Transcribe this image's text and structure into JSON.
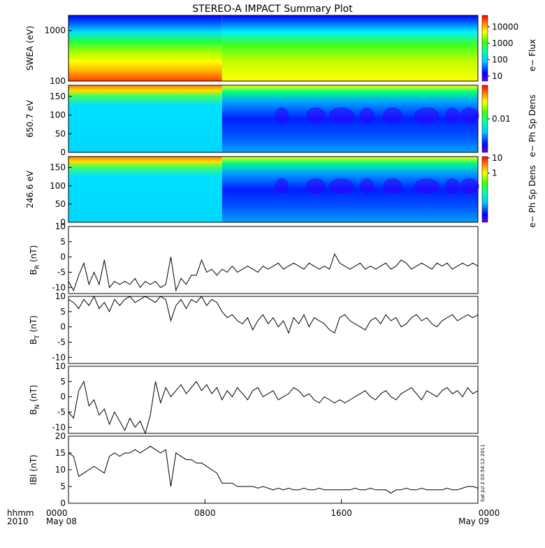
{
  "chart_data": {
    "type": "line",
    "title": "STEREO-A IMPACT Summary Plot",
    "time_labels": [
      "0000",
      "0800",
      "1600",
      "0000"
    ],
    "date_labels": [
      "May 08",
      "May 09"
    ],
    "time_header": "hhmm",
    "year_label": "2010",
    "x_range_hours": [
      0,
      24
    ],
    "stamp": "Sat Jul  2 03:54:12 2011",
    "spectrograms": [
      {
        "ylabel": "SWEA (eV)",
        "yscale": "log",
        "ylim": [
          100,
          2000
        ],
        "yticks": [
          "100",
          "1000"
        ],
        "colorbar_label": "e− Flux",
        "colorbar_ticks": [
          "10",
          "100",
          "1000",
          "10000"
        ]
      },
      {
        "ylabel": "650.7 eV",
        "ylim": [
          0,
          180
        ],
        "yticks": [
          "0",
          "50",
          "100",
          "150"
        ],
        "colorbar_label": "e− Ph Sp Dens",
        "colorbar_ticks": [
          "0.01"
        ]
      },
      {
        "ylabel": "246.6 eV",
        "ylim": [
          0,
          180
        ],
        "yticks": [
          "0",
          "50",
          "100",
          "150"
        ],
        "colorbar_label": "e− Ph Sp Dens",
        "colorbar_ticks": [
          "1",
          "10"
        ]
      }
    ],
    "series": [
      {
        "name": "B_R",
        "ylabel": "B",
        "ysub": "R",
        "yunit": "(nT)",
        "ylim": [
          -12,
          10
        ],
        "yticks": [
          "-10",
          "-5",
          "0",
          "5",
          "10"
        ],
        "x": [
          0,
          0.3,
          0.6,
          0.9,
          1.2,
          1.5,
          1.8,
          2.1,
          2.4,
          2.7,
          3.0,
          3.3,
          3.6,
          3.9,
          4.2,
          4.5,
          4.8,
          5.1,
          5.4,
          5.7,
          6.0,
          6.3,
          6.6,
          6.9,
          7.2,
          7.5,
          7.8,
          8.1,
          8.4,
          8.7,
          9.0,
          9.3,
          9.6,
          9.9,
          10.2,
          10.5,
          10.8,
          11.1,
          11.4,
          11.7,
          12.0,
          12.3,
          12.6,
          12.9,
          13.2,
          13.5,
          13.8,
          14.1,
          14.4,
          14.7,
          15.0,
          15.3,
          15.6,
          15.9,
          16.2,
          16.5,
          16.8,
          17.1,
          17.4,
          17.7,
          18.0,
          18.3,
          18.6,
          18.9,
          19.2,
          19.5,
          19.8,
          20.1,
          20.4,
          20.7,
          21.0,
          21.3,
          21.6,
          21.9,
          22.2,
          22.5,
          22.8,
          23.1,
          23.4,
          23.7,
          24.0
        ],
        "values": [
          -8,
          -11,
          -6,
          -2,
          -9,
          -5,
          -9,
          -1,
          -10,
          -8,
          -9,
          -8,
          -9,
          -7,
          -10,
          -8,
          -9,
          -8,
          -10,
          -9,
          0,
          -11,
          -7,
          -9,
          -6,
          -6,
          -1,
          -5,
          -4,
          -6,
          -4,
          -5,
          -3,
          -5,
          -4,
          -3,
          -4,
          -5,
          -3,
          -4,
          -3,
          -2,
          -4,
          -3,
          -2,
          -3,
          -4,
          -2,
          -3,
          -4,
          -3,
          -4,
          1,
          -2,
          -3,
          -4,
          -3,
          -2,
          -4,
          -3,
          -4,
          -3,
          -2,
          -4,
          -3,
          -1,
          -2,
          -4,
          -3,
          -2,
          -3,
          -4,
          -2,
          -3,
          -2,
          -4,
          -3,
          -2,
          -3,
          -2,
          -3
        ]
      },
      {
        "name": "B_T",
        "ylabel": "B",
        "ysub": "T",
        "yunit": "(nT)",
        "ylim": [
          -12,
          10
        ],
        "yticks": [
          "-10",
          "-5",
          "0",
          "5",
          "10"
        ],
        "x": [
          0,
          0.3,
          0.6,
          0.9,
          1.2,
          1.5,
          1.8,
          2.1,
          2.4,
          2.7,
          3.0,
          3.3,
          3.6,
          3.9,
          4.2,
          4.5,
          4.8,
          5.1,
          5.4,
          5.7,
          6.0,
          6.3,
          6.6,
          6.9,
          7.2,
          7.5,
          7.8,
          8.1,
          8.4,
          8.7,
          9.0,
          9.3,
          9.6,
          9.9,
          10.2,
          10.5,
          10.8,
          11.1,
          11.4,
          11.7,
          12.0,
          12.3,
          12.6,
          12.9,
          13.2,
          13.5,
          13.8,
          14.1,
          14.4,
          14.7,
          15.0,
          15.3,
          15.6,
          15.9,
          16.2,
          16.5,
          16.8,
          17.1,
          17.4,
          17.7,
          18.0,
          18.3,
          18.6,
          18.9,
          19.2,
          19.5,
          19.8,
          20.1,
          20.4,
          20.7,
          21.0,
          21.3,
          21.6,
          21.9,
          22.2,
          22.5,
          22.8,
          23.1,
          23.4,
          23.7,
          24.0
        ],
        "values": [
          9,
          8,
          6,
          9,
          7,
          10,
          6,
          8,
          5,
          9,
          7,
          9,
          10,
          8,
          9,
          10,
          9,
          8,
          10,
          9,
          2,
          7,
          9,
          6,
          9,
          8,
          10,
          7,
          9,
          8,
          5,
          3,
          4,
          2,
          1,
          3,
          -1,
          2,
          4,
          1,
          3,
          0,
          2,
          -2,
          3,
          1,
          4,
          0,
          3,
          2,
          1,
          -1,
          -2,
          3,
          4,
          2,
          1,
          0,
          -1,
          2,
          3,
          1,
          4,
          2,
          3,
          0,
          1,
          3,
          4,
          2,
          3,
          1,
          0,
          2,
          3,
          4,
          2,
          3,
          4,
          3,
          4
        ]
      },
      {
        "name": "B_N",
        "ylabel": "B",
        "ysub": "N",
        "yunit": "(nT)",
        "ylim": [
          -12,
          10
        ],
        "yticks": [
          "-10",
          "-5",
          "0",
          "5",
          "10"
        ],
        "x": [
          0,
          0.3,
          0.6,
          0.9,
          1.2,
          1.5,
          1.8,
          2.1,
          2.4,
          2.7,
          3.0,
          3.3,
          3.6,
          3.9,
          4.2,
          4.5,
          4.8,
          5.1,
          5.4,
          5.7,
          6.0,
          6.3,
          6.6,
          6.9,
          7.2,
          7.5,
          7.8,
          8.1,
          8.4,
          8.7,
          9.0,
          9.3,
          9.6,
          9.9,
          10.2,
          10.5,
          10.8,
          11.1,
          11.4,
          11.7,
          12.0,
          12.3,
          12.6,
          12.9,
          13.2,
          13.5,
          13.8,
          14.1,
          14.4,
          14.7,
          15.0,
          15.3,
          15.6,
          15.9,
          16.2,
          16.5,
          16.8,
          17.1,
          17.4,
          17.7,
          18.0,
          18.3,
          18.6,
          18.9,
          19.2,
          19.5,
          19.8,
          20.1,
          20.4,
          20.7,
          21.0,
          21.3,
          21.6,
          21.9,
          22.2,
          22.5,
          22.8,
          23.1,
          23.4,
          23.7,
          24.0
        ],
        "values": [
          -5,
          -7,
          2,
          5,
          -3,
          -1,
          -6,
          -4,
          -9,
          -5,
          -8,
          -11,
          -7,
          -10,
          -8,
          -12,
          -6,
          5,
          -2,
          3,
          0,
          2,
          4,
          1,
          3,
          5,
          2,
          4,
          1,
          3,
          -1,
          2,
          0,
          3,
          1,
          -1,
          2,
          3,
          0,
          1,
          2,
          -1,
          0,
          1,
          3,
          2,
          0,
          1,
          -1,
          -2,
          0,
          -1,
          -2,
          -1,
          -2,
          -1,
          0,
          1,
          2,
          0,
          -1,
          1,
          2,
          0,
          -1,
          1,
          2,
          3,
          1,
          -1,
          2,
          1,
          0,
          2,
          3,
          1,
          2,
          0,
          3,
          1,
          2
        ]
      },
      {
        "name": "|B|",
        "ylabel": "IBI",
        "ysub": "",
        "yunit": "(nT)",
        "ylim": [
          0,
          20
        ],
        "yticks": [
          "0",
          "5",
          "10",
          "15",
          "20"
        ],
        "x": [
          0,
          0.3,
          0.6,
          0.9,
          1.2,
          1.5,
          1.8,
          2.1,
          2.4,
          2.7,
          3.0,
          3.3,
          3.6,
          3.9,
          4.2,
          4.5,
          4.8,
          5.1,
          5.4,
          5.7,
          6.0,
          6.3,
          6.6,
          6.9,
          7.2,
          7.5,
          7.8,
          8.1,
          8.4,
          8.7,
          9.0,
          9.3,
          9.6,
          9.9,
          10.2,
          10.5,
          10.8,
          11.1,
          11.4,
          11.7,
          12.0,
          12.3,
          12.6,
          12.9,
          13.2,
          13.5,
          13.8,
          14.1,
          14.4,
          14.7,
          15.0,
          15.3,
          15.6,
          15.9,
          16.2,
          16.5,
          16.8,
          17.1,
          17.4,
          17.7,
          18.0,
          18.3,
          18.6,
          18.9,
          19.2,
          19.5,
          19.8,
          20.1,
          20.4,
          20.7,
          21.0,
          21.3,
          21.6,
          21.9,
          22.2,
          22.5,
          22.8,
          23.1,
          23.4,
          23.7,
          24.0
        ],
        "values": [
          15,
          14,
          8,
          9,
          10,
          11,
          10,
          9,
          14,
          15,
          14,
          15,
          15,
          16,
          15,
          16,
          17,
          16,
          15,
          16,
          5,
          15,
          14,
          13,
          13,
          12,
          12,
          11,
          10,
          9,
          6,
          6,
          6,
          5,
          5,
          5,
          5,
          4.5,
          5,
          4.5,
          4,
          4.5,
          4,
          4.5,
          4,
          4,
          4.5,
          4,
          4,
          4.5,
          4,
          4,
          4,
          4,
          4,
          4,
          4.5,
          4,
          4,
          4.5,
          4,
          4,
          4,
          3,
          4,
          4,
          4.5,
          4,
          4,
          4.5,
          4,
          4,
          4,
          4,
          4.5,
          4,
          4,
          4.5,
          5,
          5,
          4.5
        ]
      }
    ]
  }
}
